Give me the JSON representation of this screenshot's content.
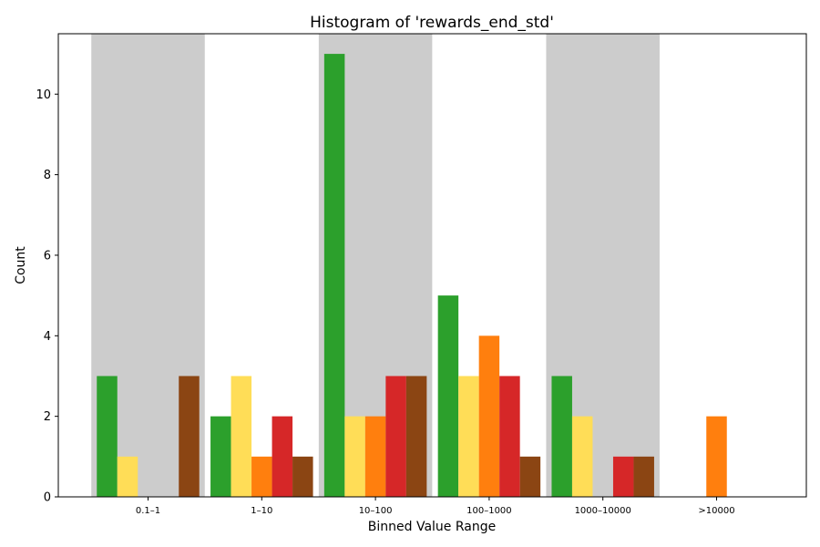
{
  "chart_data": {
    "type": "bar",
    "title": "Histogram of 'rewards_end_std'",
    "xlabel": "Binned Value Range",
    "ylabel": "Count",
    "categories": [
      "0.1–1",
      "1–10",
      "10–100",
      "100–1000",
      "1000–10000",
      ">10000"
    ],
    "yticks": [
      0,
      2,
      4,
      6,
      8,
      10
    ],
    "ylim": [
      0,
      11.5
    ],
    "shaded_categories": [
      "0.1–1",
      "10–100",
      "1000–10000"
    ],
    "shade_color": "#cccccc",
    "grid": false,
    "series": [
      {
        "color": "#2ca02c",
        "values": [
          3,
          2,
          11,
          5,
          3,
          0
        ]
      },
      {
        "color": "#ffdd57",
        "values": [
          1,
          3,
          2,
          3,
          2,
          0
        ]
      },
      {
        "color": "#ff7f0e",
        "values": [
          0,
          1,
          2,
          4,
          0,
          2
        ]
      },
      {
        "color": "#d62728",
        "values": [
          0,
          2,
          3,
          3,
          1,
          0
        ]
      },
      {
        "color": "#8b4513",
        "values": [
          3,
          1,
          3,
          1,
          1,
          0
        ]
      }
    ]
  }
}
